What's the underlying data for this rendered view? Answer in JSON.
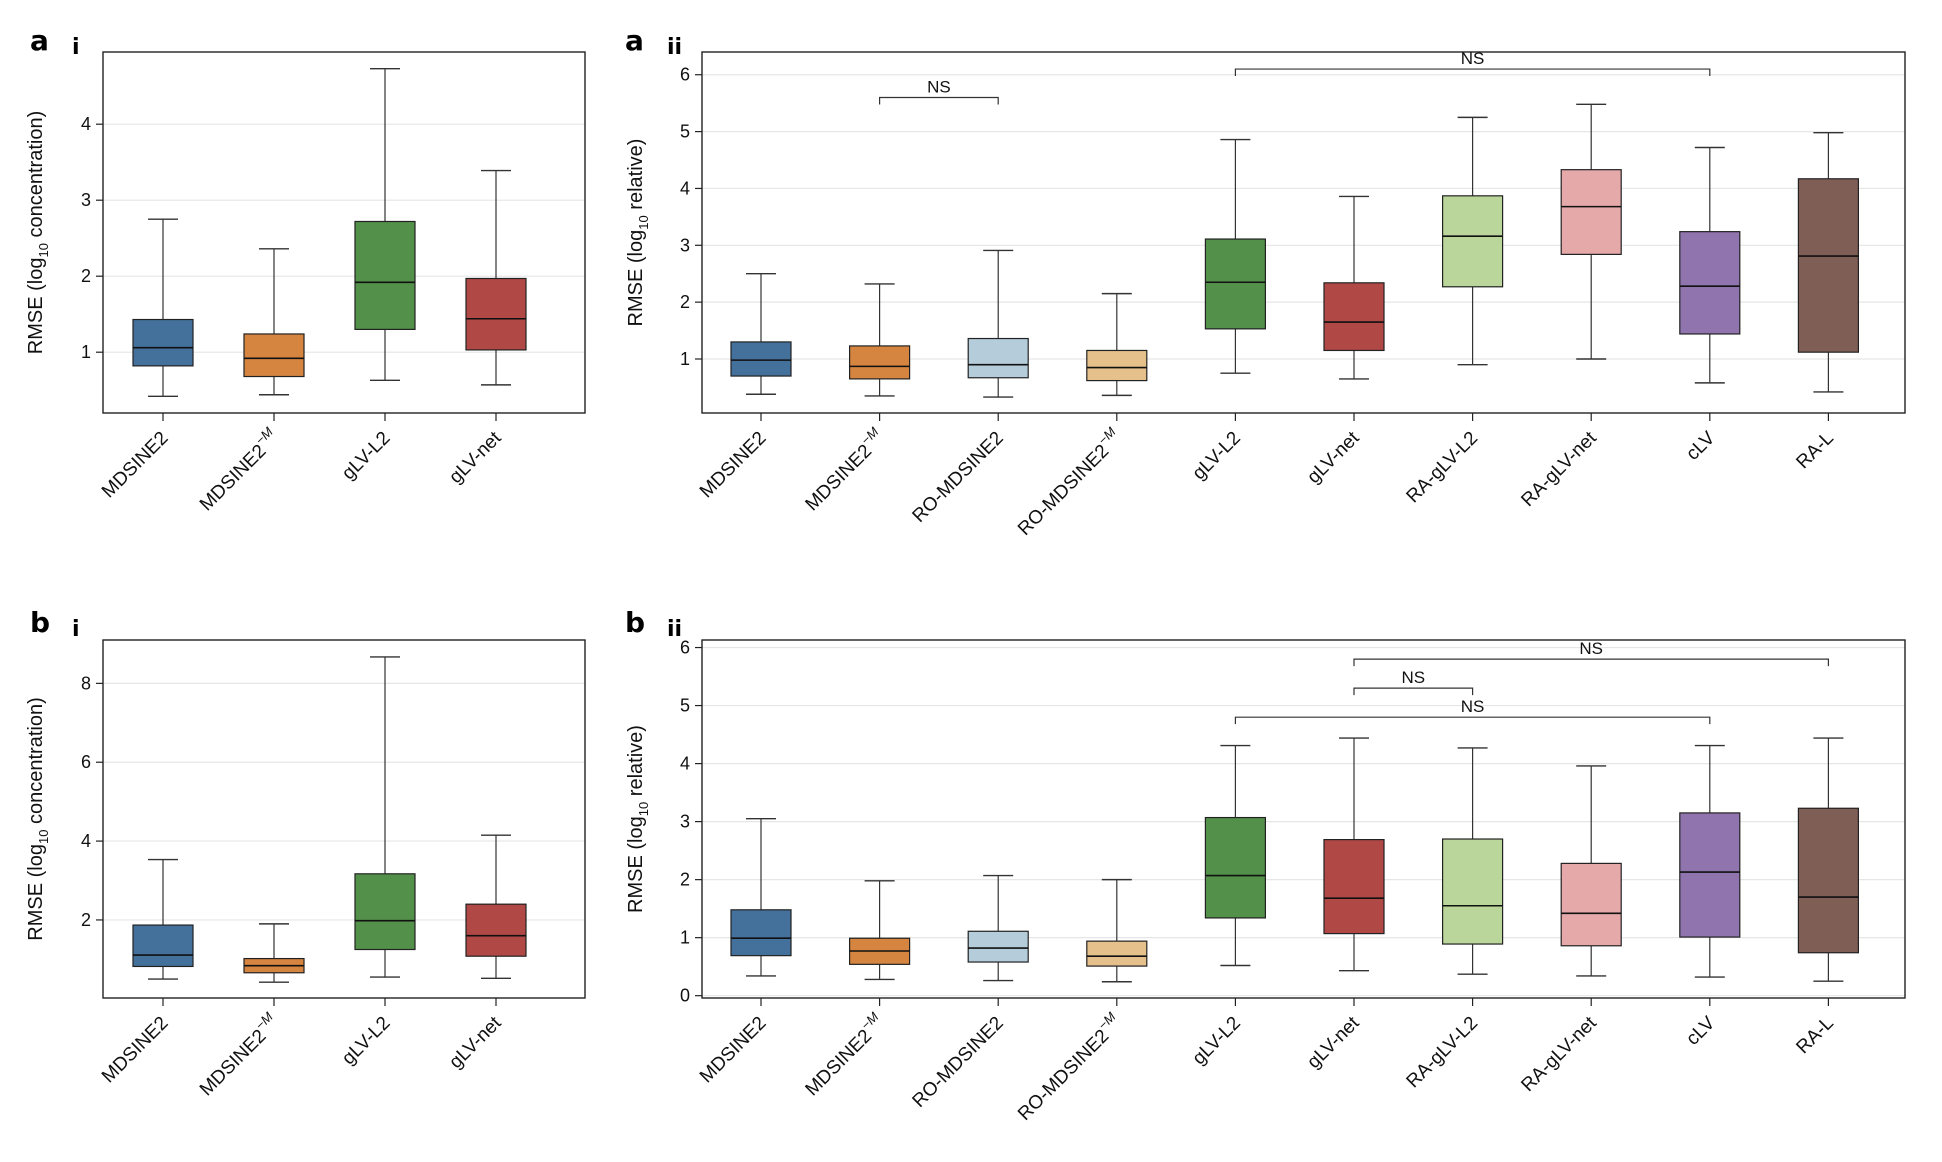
{
  "panels": [
    {
      "letter": "a",
      "sub": "i"
    },
    {
      "letter": "a",
      "sub": "ii"
    },
    {
      "letter": "b",
      "sub": "i"
    },
    {
      "letter": "b",
      "sub": "ii"
    }
  ],
  "colors": {
    "MDSINE2": "#44719c",
    "MDSINE2-M": "#d58540",
    "RO-MDSINE2": "#b5ccdb",
    "RO-MDSINE2-M": "#e5c08b",
    "gLV-L2": "#53904a",
    "gLV-net": "#b04845",
    "RA-gLV-L2": "#bbd69a",
    "RA-gLV-net": "#e5a9a9",
    "cLV": "#8f74ad",
    "RA-L": "#7f5e55"
  },
  "chart_data": [
    {
      "type": "box",
      "panel": "a i",
      "ylabel": "RMSE (log10 concentration)",
      "ylabel_main": "RMSE (log",
      "ylabel_sub": "10",
      "ylabel_end": " concentration)",
      "ylim": [
        0.2,
        4.95
      ],
      "yticks": [
        1,
        2,
        3,
        4
      ],
      "grid": true,
      "keys": [
        "MDSINE2",
        "MDSINE2-M",
        "gLV-L2",
        "gLV-net"
      ],
      "categories": [
        "MDSINE2",
        "MDSINE2",
        "gLV-L2",
        "gLV-net"
      ],
      "superscripts": [
        "",
        "−M",
        "",
        ""
      ],
      "boxes": [
        {
          "low": 0.42,
          "q1": 0.82,
          "median": 1.06,
          "q3": 1.43,
          "high": 2.75
        },
        {
          "low": 0.44,
          "q1": 0.68,
          "median": 0.92,
          "q3": 1.24,
          "high": 2.36
        },
        {
          "low": 0.63,
          "q1": 1.3,
          "median": 1.92,
          "q3": 2.72,
          "high": 4.73
        },
        {
          "low": 0.57,
          "q1": 1.03,
          "median": 1.44,
          "q3": 1.97,
          "high": 3.39
        }
      ],
      "annotations": []
    },
    {
      "type": "box",
      "panel": "a ii",
      "ylabel": "RMSE (log10 relative)",
      "ylabel_main": "RMSE (log",
      "ylabel_sub": "10",
      "ylabel_end": " relative)",
      "ylim": [
        0.05,
        6.4
      ],
      "yticks": [
        1,
        2,
        3,
        4,
        5,
        6
      ],
      "grid": true,
      "keys": [
        "MDSINE2",
        "MDSINE2-M",
        "RO-MDSINE2",
        "RO-MDSINE2-M",
        "gLV-L2",
        "gLV-net",
        "RA-gLV-L2",
        "RA-gLV-net",
        "cLV",
        "RA-L"
      ],
      "categories": [
        "MDSINE2",
        "MDSINE2",
        "RO-MDSINE2",
        "RO-MDSINE2",
        "gLV-L2",
        "gLV-net",
        "RA-gLV-L2",
        "RA-gLV-net",
        "cLV",
        "RA-L"
      ],
      "superscripts": [
        "",
        "−M",
        "",
        "−M",
        "",
        "",
        "",
        "",
        "",
        ""
      ],
      "boxes": [
        {
          "low": 0.38,
          "q1": 0.7,
          "median": 0.98,
          "q3": 1.3,
          "high": 2.5
        },
        {
          "low": 0.35,
          "q1": 0.65,
          "median": 0.87,
          "q3": 1.23,
          "high": 2.32
        },
        {
          "low": 0.33,
          "q1": 0.67,
          "median": 0.9,
          "q3": 1.36,
          "high": 2.91
        },
        {
          "low": 0.36,
          "q1": 0.62,
          "median": 0.85,
          "q3": 1.15,
          "high": 2.15
        },
        {
          "low": 0.75,
          "q1": 1.53,
          "median": 2.35,
          "q3": 3.11,
          "high": 4.86
        },
        {
          "low": 0.65,
          "q1": 1.15,
          "median": 1.65,
          "q3": 2.34,
          "high": 3.86
        },
        {
          "low": 0.9,
          "q1": 2.27,
          "median": 3.16,
          "q3": 3.87,
          "high": 5.25
        },
        {
          "low": 1.0,
          "q1": 2.84,
          "median": 3.68,
          "q3": 4.33,
          "high": 5.48
        },
        {
          "low": 0.58,
          "q1": 1.44,
          "median": 2.28,
          "q3": 3.24,
          "high": 4.72
        },
        {
          "low": 0.42,
          "q1": 1.12,
          "median": 2.81,
          "q3": 4.17,
          "high": 4.98
        }
      ],
      "annotations": [
        {
          "text": "NS",
          "from": "MDSINE2-M",
          "to": "RO-MDSINE2",
          "y": 5.6
        },
        {
          "text": "NS",
          "from": "gLV-L2",
          "to": "cLV",
          "y": 6.1
        }
      ]
    },
    {
      "type": "box",
      "panel": "b i",
      "ylabel": "RMSE (log10 concentration)",
      "ylabel_main": "RMSE (log",
      "ylabel_sub": "10",
      "ylabel_end": " concentration)",
      "ylim": [
        0.02,
        9.1
      ],
      "yticks": [
        2,
        4,
        6,
        8
      ],
      "grid": true,
      "keys": [
        "MDSINE2",
        "MDSINE2-M",
        "gLV-L2",
        "gLV-net"
      ],
      "categories": [
        "MDSINE2",
        "MDSINE2",
        "gLV-L2",
        "gLV-net"
      ],
      "superscripts": [
        "",
        "−M",
        "",
        ""
      ],
      "boxes": [
        {
          "low": 0.5,
          "q1": 0.82,
          "median": 1.11,
          "q3": 1.87,
          "high": 3.53
        },
        {
          "low": 0.42,
          "q1": 0.66,
          "median": 0.84,
          "q3": 1.02,
          "high": 1.9
        },
        {
          "low": 0.55,
          "q1": 1.25,
          "median": 1.98,
          "q3": 3.17,
          "high": 8.67
        },
        {
          "low": 0.52,
          "q1": 1.08,
          "median": 1.6,
          "q3": 2.4,
          "high": 4.15
        }
      ],
      "annotations": []
    },
    {
      "type": "box",
      "panel": "b ii",
      "ylabel": "RMSE (log10 relative)",
      "ylabel_main": "RMSE (log",
      "ylabel_sub": "10",
      "ylabel_end": " relative)",
      "ylim": [
        -0.04,
        6.13
      ],
      "yticks": [
        0,
        1,
        2,
        3,
        4,
        5,
        6
      ],
      "grid": true,
      "keys": [
        "MDSINE2",
        "MDSINE2-M",
        "RO-MDSINE2",
        "RO-MDSINE2-M",
        "gLV-L2",
        "gLV-net",
        "RA-gLV-L2",
        "RA-gLV-net",
        "cLV",
        "RA-L"
      ],
      "categories": [
        "MDSINE2",
        "MDSINE2",
        "RO-MDSINE2",
        "RO-MDSINE2",
        "gLV-L2",
        "gLV-net",
        "RA-gLV-L2",
        "RA-gLV-net",
        "cLV",
        "RA-L"
      ],
      "superscripts": [
        "",
        "−M",
        "",
        "−M",
        "",
        "",
        "",
        "",
        "",
        ""
      ],
      "boxes": [
        {
          "low": 0.34,
          "q1": 0.69,
          "median": 0.99,
          "q3": 1.48,
          "high": 3.05
        },
        {
          "low": 0.28,
          "q1": 0.54,
          "median": 0.77,
          "q3": 0.99,
          "high": 1.98
        },
        {
          "low": 0.26,
          "q1": 0.58,
          "median": 0.82,
          "q3": 1.11,
          "high": 2.07
        },
        {
          "low": 0.24,
          "q1": 0.51,
          "median": 0.68,
          "q3": 0.94,
          "high": 2.0
        },
        {
          "low": 0.52,
          "q1": 1.34,
          "median": 2.07,
          "q3": 3.07,
          "high": 4.31
        },
        {
          "low": 0.43,
          "q1": 1.07,
          "median": 1.68,
          "q3": 2.69,
          "high": 4.44
        },
        {
          "low": 0.37,
          "q1": 0.89,
          "median": 1.55,
          "q3": 2.7,
          "high": 4.27
        },
        {
          "low": 0.34,
          "q1": 0.86,
          "median": 1.42,
          "q3": 2.28,
          "high": 3.96
        },
        {
          "low": 0.32,
          "q1": 1.01,
          "median": 2.13,
          "q3": 3.15,
          "high": 4.31
        },
        {
          "low": 0.25,
          "q1": 0.74,
          "median": 1.7,
          "q3": 3.23,
          "high": 4.44
        }
      ],
      "annotations": [
        {
          "text": "NS",
          "from": "gLV-net",
          "to": "RA-L",
          "y": 5.8
        },
        {
          "text": "NS",
          "from": "gLV-net",
          "to": "RA-gLV-L2",
          "y": 5.3
        },
        {
          "text": "NS",
          "from": "gLV-L2",
          "to": "cLV",
          "y": 4.8
        }
      ]
    }
  ]
}
